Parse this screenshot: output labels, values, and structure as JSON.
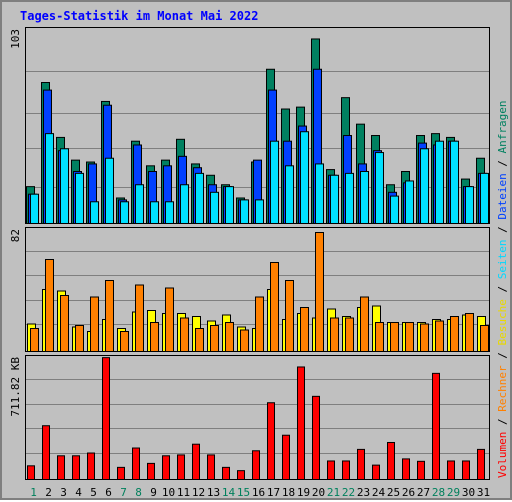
{
  "title": "Tages-Statistik im Monat Mai 2022",
  "colors": {
    "weekday_label": "#000000",
    "weekend_label": "#00805c",
    "separator": "#000000"
  },
  "chart_data": [
    {
      "type": "bar",
      "panel": "requests",
      "ymax_label": "103",
      "ylim": [
        0,
        103
      ],
      "grid": true,
      "series": [
        {
          "name": "Anfragen",
          "color": "#008060"
        },
        {
          "name": "Dateien",
          "color": "#0040ff"
        },
        {
          "name": "Seiten",
          "color": "#00e0ff"
        }
      ]
    },
    {
      "type": "bar",
      "panel": "visits",
      "ymax_label": "82",
      "ylim": [
        0,
        82
      ],
      "grid": true,
      "series": [
        {
          "name": "Besuche",
          "color": "#ffff00"
        },
        {
          "name": "Rechner",
          "color": "#ff8000"
        }
      ]
    },
    {
      "type": "bar",
      "panel": "volume",
      "ymax_label": "711.82 KB",
      "ylim": [
        0,
        711.82
      ],
      "grid": true,
      "series": [
        {
          "name": "Volumen",
          "color": "#ff0000"
        }
      ]
    }
  ],
  "days": [
    "1",
    "2",
    "3",
    "4",
    "5",
    "6",
    "7",
    "8",
    "9",
    "10",
    "11",
    "12",
    "13",
    "14",
    "15",
    "16",
    "17",
    "18",
    "19",
    "20",
    "21",
    "22",
    "23",
    "24",
    "25",
    "26",
    "27",
    "28",
    "29",
    "30",
    "31"
  ],
  "weekend": [
    1,
    7,
    8,
    14,
    15,
    21,
    22,
    28,
    29
  ],
  "anfragen": [
    20,
    75,
    46,
    34,
    33,
    65,
    14,
    44,
    31,
    34,
    45,
    32,
    26,
    21,
    14,
    33,
    82,
    61,
    62,
    98,
    29,
    67,
    53,
    47,
    21,
    28,
    47,
    48,
    46,
    24,
    35
  ],
  "dateien": [
    16,
    71,
    39,
    28,
    32,
    63,
    13,
    42,
    28,
    31,
    36,
    30,
    21,
    20,
    13,
    34,
    71,
    44,
    52,
    82,
    26,
    47,
    32,
    39,
    17,
    22,
    43,
    42,
    44,
    20,
    27
  ],
  "seiten": [
    16,
    48,
    40,
    27,
    12,
    35,
    12,
    21,
    12,
    12,
    21,
    27,
    17,
    20,
    13,
    13,
    44,
    31,
    49,
    32,
    26,
    27,
    28,
    38,
    15,
    23,
    40,
    44,
    44,
    20,
    27
  ],
  "besuche": [
    19,
    42,
    41,
    17,
    14,
    22,
    16,
    27,
    28,
    26,
    26,
    24,
    21,
    25,
    17,
    16,
    42,
    22,
    26,
    23,
    29,
    24,
    30,
    31,
    20,
    20,
    20,
    22,
    22,
    25,
    24
  ],
  "rechner": [
    16,
    62,
    38,
    18,
    37,
    48,
    14,
    45,
    20,
    43,
    23,
    16,
    18,
    20,
    15,
    37,
    60,
    48,
    30,
    80,
    23,
    23,
    37,
    20,
    20,
    20,
    19,
    21,
    24,
    26,
    18
  ],
  "volumen": [
    85,
    317,
    143,
    143,
    159,
    711,
    76,
    188,
    99,
    143,
    148,
    210,
    148,
    76,
    57,
    172,
    450,
    262,
    657,
    487,
    113,
    113,
    180,
    89,
    220,
    125,
    111,
    620,
    113,
    113,
    180
  ],
  "legend_right": [
    {
      "text": "Volumen",
      "color": "#ff0000"
    },
    {
      "text": " / ",
      "color": "#000000"
    },
    {
      "text": "Rechner",
      "color": "#ff8000"
    },
    {
      "text": " / ",
      "color": "#000000"
    },
    {
      "text": "Besuche",
      "color": "#e8d800"
    },
    {
      "text": " / ",
      "color": "#000000"
    },
    {
      "text": "Seiten",
      "color": "#00d8ff"
    },
    {
      "text": " / ",
      "color": "#000000"
    },
    {
      "text": "Dateien",
      "color": "#0040ff"
    },
    {
      "text": " / ",
      "color": "#000000"
    },
    {
      "text": "Anfragen",
      "color": "#008060"
    }
  ]
}
